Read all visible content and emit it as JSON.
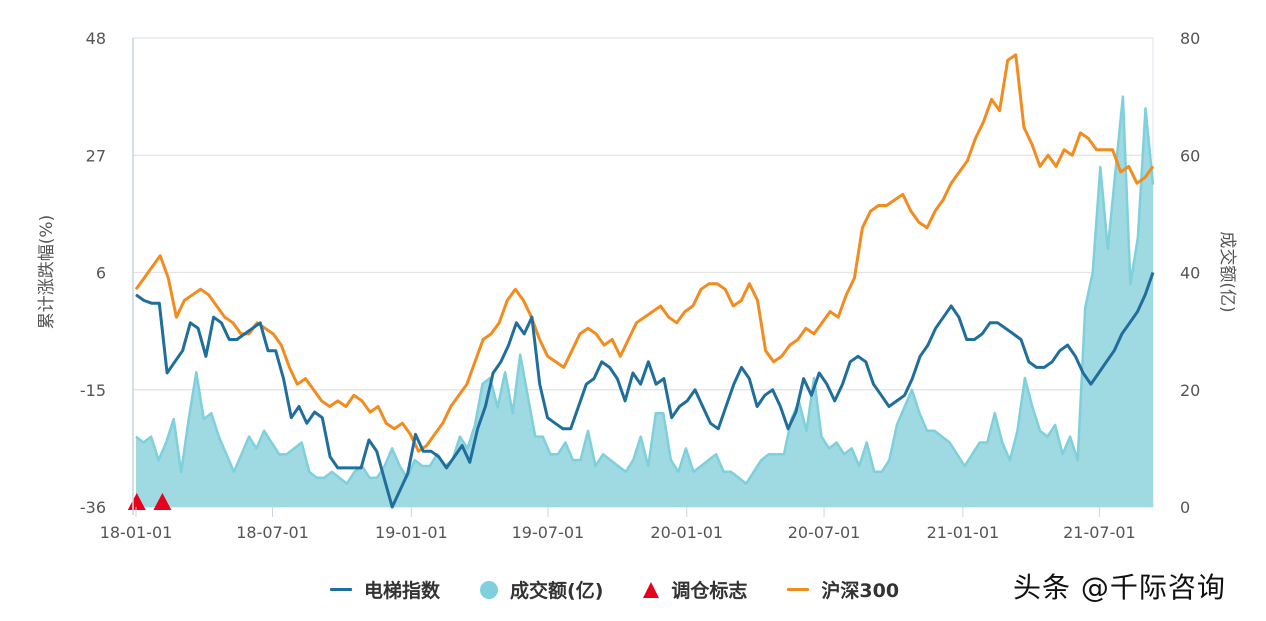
{
  "chart_data": {
    "type": "line",
    "title": "",
    "xlabel": "",
    "ylabel": "累计涨跌幅(%)",
    "ylabel_right": "成交额(亿)",
    "ylim": [
      -36,
      48
    ],
    "ylim_right": [
      0,
      80
    ],
    "y_ticks": [
      "48",
      "27",
      "6",
      "-15",
      "-36"
    ],
    "y_ticks_right": [
      "80",
      "60",
      "40",
      "20",
      "0"
    ],
    "x_ticks": [
      "18-01-01",
      "18-07-01",
      "19-01-01",
      "19-07-01",
      "20-01-01",
      "20-07-01",
      "21-01-01",
      "21-07-01"
    ],
    "grid": true,
    "legend_position": "bottom",
    "x_start": "2018-01-01",
    "x_end": "2021-09-10",
    "series": [
      {
        "name": "电梯指数",
        "type": "line",
        "axis": "left",
        "color": "#1f6e9c",
        "values": [
          2,
          1,
          0.5,
          0.5,
          -12,
          -10,
          -8,
          -3,
          -4,
          -9,
          -2,
          -3,
          -6,
          -6,
          -5,
          -4,
          -3,
          -8,
          -8,
          -13,
          -20,
          -18,
          -21,
          -19,
          -20,
          -27,
          -29,
          -29,
          -29,
          -29,
          -24,
          -26,
          -31,
          -36,
          -33,
          -30,
          -23,
          -26,
          -26,
          -27,
          -29,
          -27,
          -25,
          -28,
          -22,
          -18,
          -12,
          -10,
          -7,
          -3,
          -5,
          -2,
          -14,
          -20,
          -21,
          -22,
          -22,
          -18,
          -14,
          -13,
          -10,
          -11,
          -13,
          -17,
          -12,
          -14,
          -10,
          -14,
          -13,
          -20,
          -18,
          -17,
          -15,
          -18,
          -21,
          -22,
          -18,
          -14,
          -11,
          -13,
          -18,
          -16,
          -15,
          -18,
          -22,
          -19,
          -13,
          -16,
          -12,
          -14,
          -17,
          -14,
          -10,
          -9,
          -10,
          -14,
          -16,
          -18,
          -17,
          -16,
          -13,
          -9,
          -7,
          -4,
          -2,
          0,
          -2,
          -6,
          -6,
          -5,
          -3,
          -3,
          -4,
          -5,
          -6,
          -10,
          -11,
          -11,
          -10,
          -8,
          -7,
          -9,
          -12,
          -14,
          -12,
          -10,
          -8,
          -5,
          -3,
          -1,
          2,
          6
        ],
        "note": "approximate weekly-ish readings"
      },
      {
        "name": "沪深300",
        "type": "line",
        "axis": "left",
        "color": "#f28c1e",
        "values": [
          3,
          5,
          7,
          9,
          5,
          -2,
          1,
          2,
          3,
          2,
          0,
          -2,
          -3,
          -5,
          -5,
          -3,
          -4,
          -5,
          -7,
          -11,
          -14,
          -13,
          -15,
          -17,
          -18,
          -17,
          -18,
          -16,
          -17,
          -19,
          -18,
          -21,
          -22,
          -21,
          -23,
          -26,
          -25,
          -23,
          -21,
          -18,
          -16,
          -14,
          -10,
          -6,
          -5,
          -3,
          1,
          3,
          1,
          -2,
          -6,
          -9,
          -10,
          -11,
          -8,
          -5,
          -4,
          -5,
          -7,
          -6,
          -9,
          -6,
          -3,
          -2,
          -1,
          0,
          -2,
          -3,
          -1,
          0,
          3,
          4,
          4,
          3,
          0,
          1,
          4,
          1,
          -8,
          -10,
          -9,
          -7,
          -6,
          -4,
          -5,
          -3,
          -1,
          -2,
          2,
          5,
          14,
          17,
          18,
          18,
          19,
          20,
          17,
          15,
          14,
          17,
          19,
          22,
          24,
          26,
          30,
          33,
          37,
          35,
          44,
          45,
          32,
          29,
          25,
          27,
          25,
          28,
          27,
          31,
          30,
          28,
          28,
          28,
          24,
          25,
          22,
          23,
          25
        ]
      },
      {
        "name": "成交额(亿)",
        "type": "area",
        "axis": "right",
        "color": "#7ed0dc",
        "fill": "#9fd9e2",
        "values": [
          12,
          11,
          12,
          8,
          11,
          15,
          6,
          15,
          23,
          15,
          16,
          12,
          9,
          6,
          9,
          12,
          10,
          13,
          11,
          9,
          9,
          10,
          11,
          6,
          5,
          5,
          6,
          5,
          4,
          6,
          7,
          5,
          5,
          7,
          10,
          7,
          5,
          8,
          7,
          7,
          9,
          7,
          8,
          12,
          10,
          14,
          21,
          22,
          17,
          23,
          16,
          26,
          19,
          12,
          12,
          9,
          9,
          11,
          8,
          8,
          13,
          7,
          9,
          8,
          7,
          6,
          8,
          12,
          7,
          16,
          16,
          8,
          6,
          10,
          6,
          7,
          8,
          9,
          6,
          6,
          5,
          4,
          6,
          8,
          9,
          9,
          9,
          15,
          18,
          13,
          22,
          12,
          10,
          11,
          9,
          10,
          7,
          11,
          6,
          6,
          8,
          14,
          17,
          20,
          16,
          13,
          13,
          12,
          11,
          9,
          7,
          9,
          11,
          11,
          16,
          11,
          8,
          13,
          22,
          17,
          13,
          12,
          14,
          9,
          12,
          8,
          34,
          40,
          58,
          44,
          57,
          70,
          38,
          46,
          68,
          55
        ]
      },
      {
        "name": "调仓标志",
        "type": "scatter",
        "marker": "triangle",
        "color": "#e8001c",
        "points": [
          {
            "x": "2018-01-02",
            "y": -36
          },
          {
            "x": "2018-02-05",
            "y": -36
          }
        ]
      }
    ]
  },
  "legend": {
    "items": [
      {
        "label": "电梯指数",
        "kind": "line",
        "color": "#1f6e9c"
      },
      {
        "label": "成交额(亿)",
        "kind": "dot",
        "color": "#7ed0dc"
      },
      {
        "label": "调仓标志",
        "kind": "triangle",
        "color": "#e8001c"
      },
      {
        "label": "沪深300",
        "kind": "line",
        "color": "#f28c1e"
      }
    ]
  },
  "watermark": "头条 @千际咨询"
}
